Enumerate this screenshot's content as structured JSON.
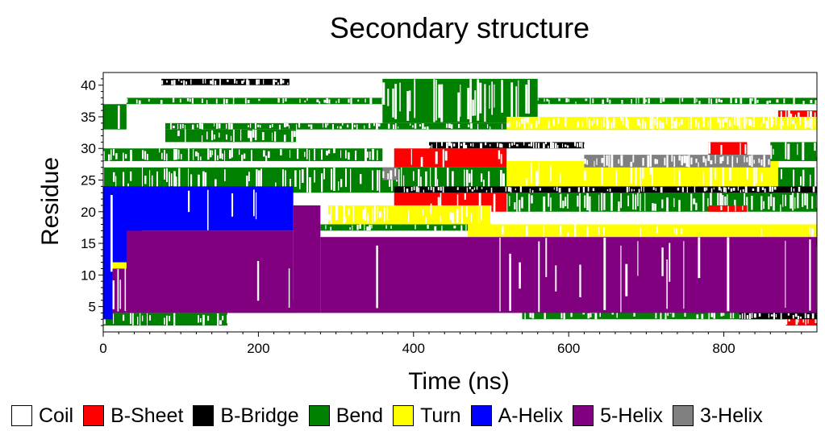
{
  "chart_data": {
    "type": "heatmap",
    "title": "Secondary structure",
    "xlabel": "Time (ns)",
    "ylabel": "Residue",
    "xlim": [
      0,
      920
    ],
    "ylim": [
      1,
      42
    ],
    "x_ticks": [
      0,
      200,
      400,
      600,
      800
    ],
    "y_ticks": [
      5,
      10,
      15,
      20,
      25,
      30,
      35,
      40
    ],
    "grid": false,
    "legend_placement": "bottom",
    "states": [
      {
        "name": "Coil",
        "color": "#ffffff"
      },
      {
        "name": "B-Sheet",
        "color": "#ff0000"
      },
      {
        "name": "B-Bridge",
        "color": "#000000"
      },
      {
        "name": "Bend",
        "color": "#008000"
      },
      {
        "name": "Turn",
        "color": "#ffff00"
      },
      {
        "name": "A-Helix",
        "color": "#0000ff"
      },
      {
        "name": "5-Helix",
        "color": "#800080"
      },
      {
        "name": "3-Helix",
        "color": "#808080"
      }
    ],
    "regions": [
      {
        "state": "Bend",
        "t": [
          0,
          30
        ],
        "r": [
          33,
          37
        ],
        "noise": 0.25
      },
      {
        "state": "Bend",
        "t": [
          30,
          200
        ],
        "r": [
          37,
          38
        ],
        "noise": 0.3
      },
      {
        "state": "Bend",
        "t": [
          200,
          920
        ],
        "r": [
          37,
          38
        ],
        "noise": 0.4
      },
      {
        "state": "Bend",
        "t": [
          80,
          920
        ],
        "r": [
          33,
          34
        ],
        "noise": 0.5
      },
      {
        "state": "Bend",
        "t": [
          80,
          250
        ],
        "r": [
          31,
          33
        ],
        "noise": 0.5
      },
      {
        "state": "Bend",
        "t": [
          0,
          360
        ],
        "r": [
          28,
          30
        ],
        "noise": 0.5
      },
      {
        "state": "Bend",
        "t": [
          0,
          920
        ],
        "r": [
          23,
          27
        ],
        "noise": 0.45
      },
      {
        "state": "Bend",
        "t": [
          360,
          560
        ],
        "r": [
          34,
          41
        ],
        "noise": 0.45
      },
      {
        "state": "Bend",
        "t": [
          520,
          920
        ],
        "r": [
          20,
          23
        ],
        "noise": 0.5
      },
      {
        "state": "Bend",
        "t": [
          540,
          920
        ],
        "r": [
          3,
          5
        ],
        "noise": 0.35
      },
      {
        "state": "Bend",
        "t": [
          0,
          160
        ],
        "r": [
          2,
          4
        ],
        "noise": 0.3
      },
      {
        "state": "Bend",
        "t": [
          160,
          250
        ],
        "r": [
          4,
          6
        ],
        "noise": 0.25
      },
      {
        "state": "Bend",
        "t": [
          280,
          520
        ],
        "r": [
          17,
          18
        ],
        "noise": 0.3
      },
      {
        "state": "Bend",
        "t": [
          860,
          920
        ],
        "r": [
          28,
          31
        ],
        "noise": 0.35
      },
      {
        "state": "B-Sheet",
        "t": [
          375,
          520
        ],
        "r": [
          20,
          23
        ],
        "noise": 0.2
      },
      {
        "state": "B-Sheet",
        "t": [
          375,
          520
        ],
        "r": [
          27,
          30
        ],
        "noise": 0.2
      },
      {
        "state": "B-Sheet",
        "t": [
          780,
          830
        ],
        "r": [
          29,
          31
        ],
        "noise": 0.25
      },
      {
        "state": "B-Sheet",
        "t": [
          780,
          830
        ],
        "r": [
          20,
          21
        ],
        "noise": 0.3
      },
      {
        "state": "B-Sheet",
        "t": [
          870,
          920
        ],
        "r": [
          34,
          36
        ],
        "noise": 0.6
      },
      {
        "state": "B-Sheet",
        "t": [
          880,
          920
        ],
        "r": [
          2,
          4
        ],
        "noise": 0.6
      },
      {
        "state": "B-Bridge",
        "t": [
          375,
          920
        ],
        "r": [
          23,
          24
        ],
        "noise": 0.55
      },
      {
        "state": "B-Bridge",
        "t": [
          420,
          620
        ],
        "r": [
          30,
          31
        ],
        "noise": 0.5
      },
      {
        "state": "B-Bridge",
        "t": [
          820,
          920
        ],
        "r": [
          3,
          4
        ],
        "noise": 0.6
      },
      {
        "state": "B-Bridge",
        "t": [
          75,
          240
        ],
        "r": [
          40,
          41
        ],
        "noise": 0.65
      },
      {
        "state": "Turn",
        "t": [
          520,
          870
        ],
        "r": [
          24,
          28
        ],
        "noise": 0.15
      },
      {
        "state": "Turn",
        "t": [
          470,
          920
        ],
        "r": [
          16,
          18
        ],
        "noise": 0.1
      },
      {
        "state": "Turn",
        "t": [
          290,
          500
        ],
        "r": [
          18,
          21
        ],
        "noise": 0.45
      },
      {
        "state": "Turn",
        "t": [
          10,
          30
        ],
        "r": [
          5,
          12
        ],
        "noise": 0.5
      },
      {
        "state": "Turn",
        "t": [
          520,
          920
        ],
        "r": [
          33,
          35
        ],
        "noise": 0.7
      },
      {
        "state": "A-Helix",
        "t": [
          0,
          245
        ],
        "r": [
          17,
          24
        ],
        "noise": 0.04
      },
      {
        "state": "A-Helix",
        "t": [
          0,
          50
        ],
        "r": [
          12,
          24
        ],
        "noise": 0.08
      },
      {
        "state": "A-Helix",
        "t": [
          0,
          12
        ],
        "r": [
          3,
          24
        ],
        "noise": 0.1
      },
      {
        "state": "5-Helix",
        "t": [
          30,
          245
        ],
        "r": [
          4,
          17
        ],
        "noise": 0.08
      },
      {
        "state": "5-Helix",
        "t": [
          245,
          280
        ],
        "r": [
          4,
          21
        ],
        "noise": 0.08
      },
      {
        "state": "5-Helix",
        "t": [
          280,
          920
        ],
        "r": [
          4,
          16
        ],
        "noise": 0.08
      },
      {
        "state": "5-Helix",
        "t": [
          12,
          30
        ],
        "r": [
          4,
          11
        ],
        "noise": 0.3
      },
      {
        "state": "3-Helix",
        "t": [
          620,
          860
        ],
        "r": [
          27,
          29
        ],
        "noise": 0.7
      },
      {
        "state": "3-Helix",
        "t": [
          360,
          380
        ],
        "r": [
          25,
          27
        ],
        "noise": 0.5
      }
    ]
  }
}
